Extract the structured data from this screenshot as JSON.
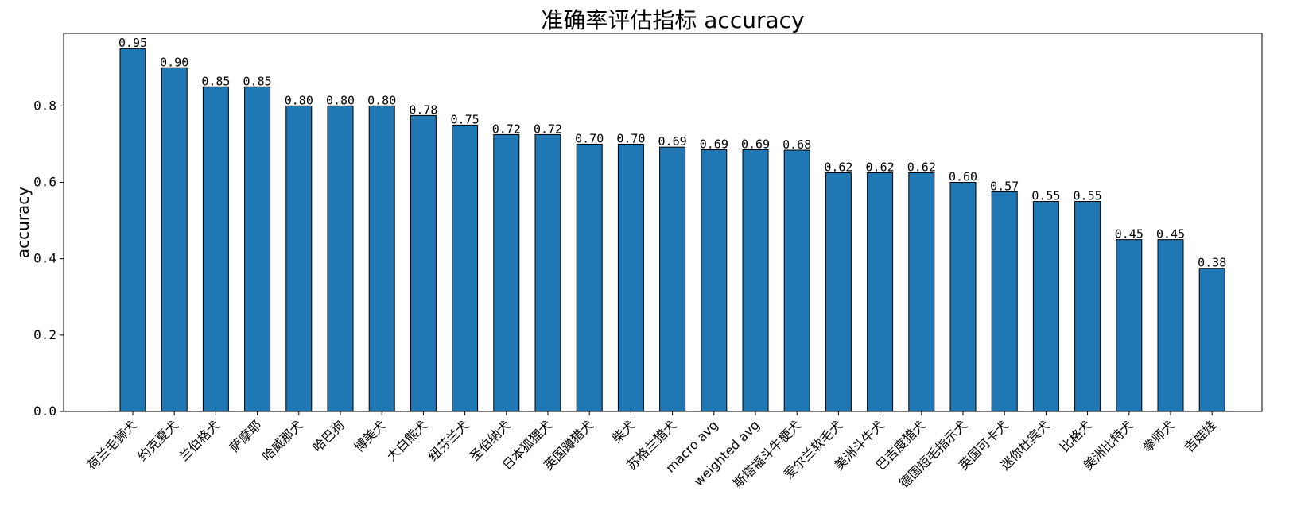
{
  "chart_data": {
    "type": "bar",
    "title": "准确率评估指标 accuracy",
    "xlabel": "",
    "ylabel": "accuracy",
    "ylim": [
      0,
      0.99
    ],
    "yticks": [
      "0.0",
      "0.2",
      "0.4",
      "0.6",
      "0.8"
    ],
    "ytick_values": [
      0.0,
      0.2,
      0.4,
      0.6,
      0.8
    ],
    "grid": false,
    "bar_color": "#1f77b4",
    "edge_color": "#000000",
    "categories": [
      "荷兰毛狮犬",
      "约克夏犬",
      "兰伯格犬",
      "萨摩耶",
      "哈威那犬",
      "哈巴狗",
      "博美犬",
      "大白熊犬",
      "纽芬兰犬",
      "圣伯纳犬",
      "日本狐狸犬",
      "英国蹲猎犬",
      "柴犬",
      "苏格兰猎犬",
      "macro avg",
      "weighted avg",
      "斯塔福斗牛梗犬",
      "爱尔兰软毛犬",
      "美洲斗牛犬",
      "巴吉度猎犬",
      "德国短毛指示犬",
      "英国可卡犬",
      "迷你杜宾犬",
      "比格犬",
      "美洲比特犬",
      "拳师犬",
      "吉娃娃"
    ],
    "values": [
      0.95,
      0.9,
      0.85,
      0.85,
      0.8,
      0.8,
      0.8,
      0.775,
      0.75,
      0.725,
      0.725,
      0.7,
      0.7,
      0.6923,
      0.6855,
      0.6855,
      0.6842,
      0.625,
      0.625,
      0.625,
      0.6,
      0.575,
      0.55,
      0.55,
      0.45,
      0.45,
      0.375
    ],
    "value_labels": [
      "0.95",
      "0.90",
      "0.85",
      "0.85",
      "0.80",
      "0.80",
      "0.80",
      "0.78",
      "0.75",
      "0.72",
      "0.72",
      "0.70",
      "0.70",
      "0.69",
      "0.69",
      "0.69",
      "0.68",
      "0.62",
      "0.62",
      "0.62",
      "0.60",
      "0.57",
      "0.55",
      "0.55",
      "0.45",
      "0.45",
      "0.38"
    ]
  }
}
